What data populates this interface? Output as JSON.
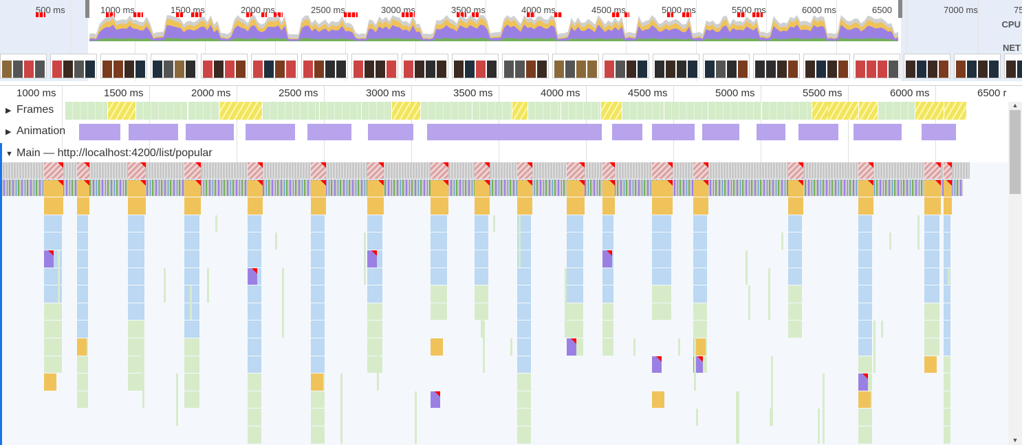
{
  "overview": {
    "ticks": [
      "500 ms",
      "1000 ms",
      "1500 ms",
      "2000 ms",
      "2500 ms",
      "3000 ms",
      "3500 ms",
      "4000 ms",
      "4500 ms",
      "5000 ms",
      "5500 ms",
      "6000 ms",
      "6500",
      "7000 ms",
      "75"
    ],
    "cpu_label": "CPU",
    "net_label": "NET"
  },
  "ruler": {
    "ticks": [
      "1000 ms",
      "1500 ms",
      "2000 ms",
      "2500 ms",
      "3000 ms",
      "3500 ms",
      "4000 ms",
      "4500 ms",
      "5000 ms",
      "5500 ms",
      "6000 ms",
      "6500 r"
    ]
  },
  "tracks": {
    "frames_label": "Frames",
    "animation_label": "Animation",
    "main_label": "Main — http://localhost:4200/list/popular"
  },
  "colors": {
    "scripting": "#f0c35a",
    "rendering": "#9b80e3",
    "painting": "#74b05a",
    "idle_frame": "#d4ecc8",
    "slow_frame": "#f1e55f",
    "task_gray": "#c8c8c8",
    "call_blue": "#bcd8f2",
    "call_green": "#d7ebc9",
    "warning_red": "#ff0000"
  }
}
